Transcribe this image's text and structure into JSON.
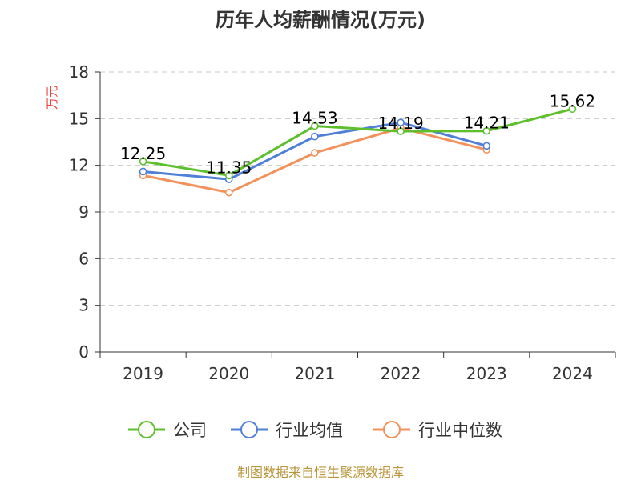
{
  "chart_data": {
    "type": "line",
    "title": "历年人均薪酬情况(万元)",
    "ylabel": "万元",
    "xlabel": "",
    "ylim": [
      0,
      18
    ],
    "yticks": [
      0,
      3,
      6,
      9,
      12,
      15,
      18
    ],
    "grid": true,
    "legend_position": "bottom",
    "categories": [
      "2019",
      "2020",
      "2021",
      "2022",
      "2023",
      "2024"
    ],
    "series": [
      {
        "name": "公司",
        "color": "#5dbf2c",
        "values": [
          12.25,
          11.35,
          14.53,
          14.19,
          14.21,
          15.62
        ],
        "labels": [
          "12.25",
          "11.35",
          "14.53",
          "14.19",
          "14.21",
          "15.62"
        ]
      },
      {
        "name": "行业均值",
        "color": "#4f7fd6",
        "values": [
          11.6,
          11.1,
          13.85,
          14.75,
          13.25,
          null
        ]
      },
      {
        "name": "行业中位数",
        "color": "#f4915a",
        "values": [
          11.35,
          10.25,
          12.8,
          14.4,
          13.0,
          null
        ]
      }
    ]
  },
  "source": "制图数据来自恒生聚源数据库"
}
